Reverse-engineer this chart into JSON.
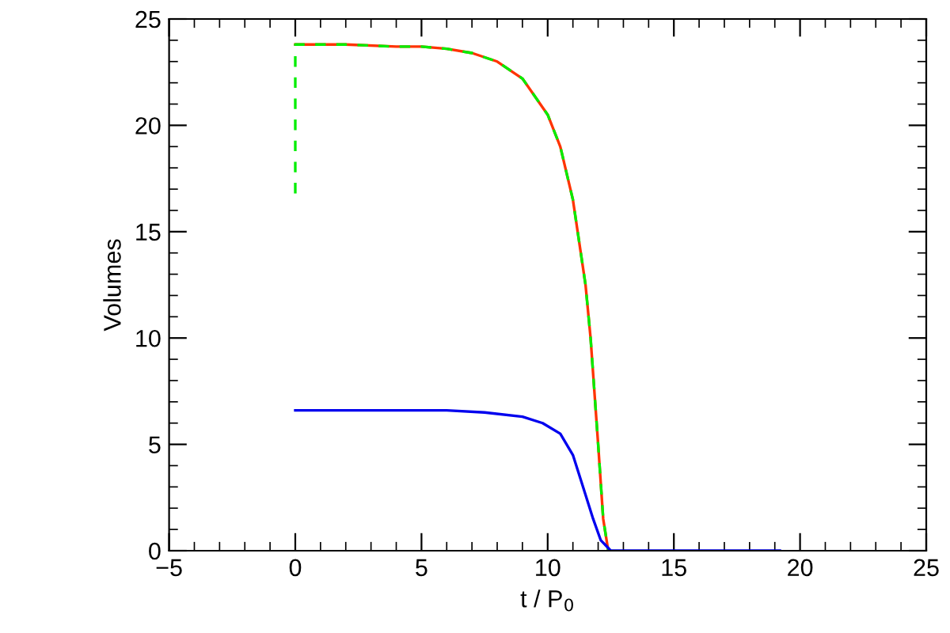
{
  "chart_data": {
    "type": "line",
    "xlabel": "t / P$_{0}$",
    "ylabel": "Volumes",
    "xlim": [
      -5,
      25
    ],
    "ylim": [
      0,
      25
    ],
    "xticks": [
      -5,
      0,
      5,
      10,
      15,
      20,
      25
    ],
    "yticks": [
      0,
      5,
      10,
      15,
      20,
      25
    ],
    "grid": false,
    "marker": "none",
    "series": [
      {
        "color": "#ff3300",
        "line_style": "solid",
        "x": [
          0,
          2,
          4,
          5,
          6,
          7,
          8,
          9,
          10,
          10.5,
          11,
          11.5,
          11.7,
          12,
          12.2,
          12.4
        ],
        "values": [
          23.8,
          23.8,
          23.7,
          23.7,
          23.6,
          23.4,
          23.0,
          22.2,
          20.5,
          19,
          16.5,
          12.5,
          10,
          5,
          1.5,
          0
        ]
      },
      {
        "color": "#00ee00",
        "line_style": "dashed",
        "x": [
          0,
          0,
          2,
          4,
          5,
          6,
          7,
          8,
          9,
          10,
          10.5,
          11,
          11.5,
          11.7,
          12,
          12.2,
          12.4
        ],
        "values": [
          16.8,
          23.8,
          23.8,
          23.7,
          23.7,
          23.6,
          23.4,
          23.0,
          22.2,
          20.5,
          19,
          16.5,
          12.5,
          10,
          5,
          1.5,
          0
        ]
      },
      {
        "color": "#0000ee",
        "line_style": "solid",
        "x": [
          0,
          6,
          7.5,
          9,
          9.8,
          10.5,
          11,
          11.4,
          11.8,
          12.1,
          12.5,
          19.2
        ],
        "values": [
          6.6,
          6.6,
          6.5,
          6.3,
          6.0,
          5.5,
          4.5,
          3,
          1.5,
          0.5,
          0,
          0
        ]
      }
    ]
  }
}
